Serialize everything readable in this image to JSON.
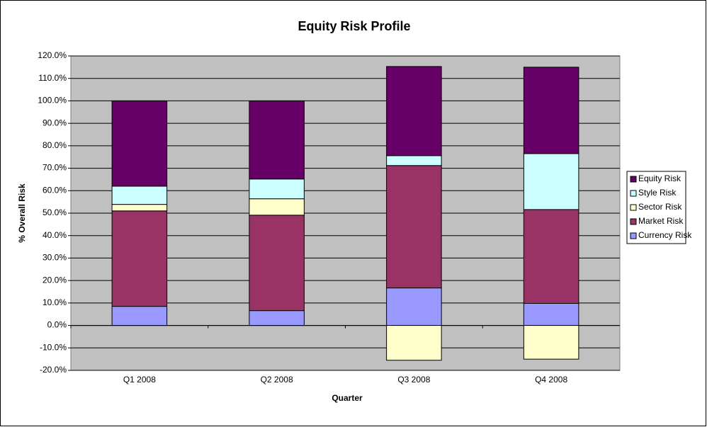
{
  "chart_data": {
    "type": "stacked-bar",
    "title": "Equity Risk Profile",
    "x_label": "Quarter",
    "y_label": "% Overall Risk",
    "categories": [
      "Q1 2008",
      "Q2 2008",
      "Q3 2008",
      "Q4 2008"
    ],
    "series": [
      {
        "name": "Currency Risk",
        "color": "#9999ff",
        "values": [
          8.5,
          6.6,
          16.7,
          9.8
        ]
      },
      {
        "name": "Market Risk",
        "color": "#993366",
        "values": [
          42.5,
          42.5,
          54.5,
          41.8
        ]
      },
      {
        "name": "Sector Risk",
        "color": "#ffffcc",
        "values": [
          2.9,
          7.3,
          -15.5,
          -15.0
        ]
      },
      {
        "name": "Style Risk",
        "color": "#ccffff",
        "values": [
          8.1,
          8.8,
          4.4,
          24.9
        ]
      },
      {
        "name": "Equity Risk",
        "color": "#660066",
        "values": [
          38.0,
          34.8,
          39.7,
          38.5
        ]
      }
    ],
    "ylim": [
      -20,
      120
    ],
    "yticks": [
      {
        "value": -20,
        "label": "-20.0%"
      },
      {
        "value": -10,
        "label": "-10.0%"
      },
      {
        "value": 0,
        "label": "0.0%"
      },
      {
        "value": 10,
        "label": "10.0%"
      },
      {
        "value": 20,
        "label": "20.0%"
      },
      {
        "value": 30,
        "label": "30.0%"
      },
      {
        "value": 40,
        "label": "40.0%"
      },
      {
        "value": 50,
        "label": "50.0%"
      },
      {
        "value": 60,
        "label": "60.0%"
      },
      {
        "value": 70,
        "label": "70.0%"
      },
      {
        "value": 80,
        "label": "80.0%"
      },
      {
        "value": 90,
        "label": "90.0%"
      },
      {
        "value": 100,
        "label": "100.0%"
      },
      {
        "value": 110,
        "label": "110.0%"
      },
      {
        "value": 120,
        "label": "120.0%"
      }
    ],
    "grid": true,
    "plot_background": "#c0c0c0",
    "legend": "right"
  }
}
